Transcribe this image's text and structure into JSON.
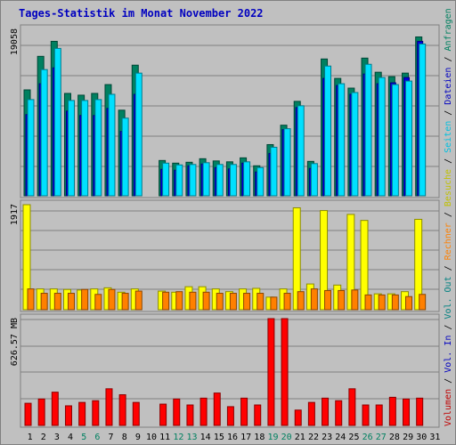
{
  "title": "Tages-Statistik im Monat November 2022",
  "chart_data": {
    "type": "bar",
    "title": "Tages-Statistik im Monat November 2022",
    "days": [
      "1",
      "2",
      "3",
      "4",
      "5",
      "6",
      "7",
      "8",
      "9",
      "10",
      "11",
      "12",
      "13",
      "14",
      "15",
      "16",
      "17",
      "18",
      "19",
      "20",
      "21",
      "22",
      "23",
      "24",
      "25",
      "26",
      "27",
      "28",
      "29",
      "30",
      "31"
    ],
    "weekend_days": [
      "5",
      "6",
      "12",
      "13",
      "19",
      "20",
      "26",
      "27"
    ],
    "panels": [
      {
        "id": "top",
        "ymax_label": "19058",
        "ymax": 19058,
        "series": [
          {
            "name": "Anfragen",
            "color": "#008060",
            "values": [
              12000,
              15800,
              17500,
              11600,
              11400,
              11600,
              12600,
              9700,
              14800,
              0,
              4000,
              3700,
              3800,
              4200,
              3950,
              3850,
              4300,
              3400,
              5800,
              8000,
              10700,
              3900,
              15500,
              13300,
              12200,
              15600,
              14000,
              13500,
              13900,
              18000
            ]
          },
          {
            "name": "Dateien",
            "color": "#0000e0",
            "values": [
              9200,
              12700,
              14500,
              9600,
              9100,
              9100,
              9900,
              7300,
              11500,
              0,
              3000,
              2900,
              3400,
              3600,
              3200,
              3050,
              3700,
              2700,
              4800,
              7500,
              10000,
              3100,
              13300,
              12500,
              11500,
              13800,
              12700,
              12800,
              13400,
              17500
            ]
          },
          {
            "name": "Seiten",
            "color": "#00e0ff",
            "values": [
              10900,
              14300,
              16700,
              10800,
              10800,
              10900,
              11500,
              8800,
              13900,
              0,
              3700,
              3500,
              3550,
              3750,
              3550,
              3550,
              3850,
              3200,
              5500,
              7600,
              10200,
              3650,
              14700,
              12700,
              11700,
              14900,
              13400,
              12600,
              13000,
              17200
            ]
          }
        ]
      },
      {
        "id": "middle",
        "ymax_label": "1917",
        "ymax": 1917,
        "series": [
          {
            "name": "Besuche",
            "color": "#ffff00",
            "values": [
              1917,
              380,
              380,
              370,
              360,
              380,
              400,
              320,
              380,
              0,
              340,
              320,
              420,
              420,
              380,
              330,
              380,
              390,
              230,
              380,
              1860,
              470,
              1810,
              450,
              1740,
              1630,
              290,
              290,
              330,
              1650
            ]
          },
          {
            "name": "Rechner",
            "color": "#ff8000",
            "values": [
              380,
              300,
              300,
              300,
              370,
              280,
              370,
              300,
              340,
              0,
              320,
              330,
              320,
              320,
              300,
              300,
              300,
              300,
              230,
              300,
              330,
              380,
              350,
              350,
              360,
              270,
              270,
              270,
              240,
              280
            ]
          }
        ]
      },
      {
        "id": "bottom",
        "ymax_label": "626.57 MB",
        "ymax": 626.57,
        "series": [
          {
            "name": "Volumen",
            "color": "#ff0000",
            "values": [
              130,
              155,
              195,
              115,
              135,
              145,
              215,
              180,
              135,
              0,
              125,
              155,
              120,
              160,
              190,
              110,
              160,
              120,
              626.57,
              626.57,
              90,
              135,
              160,
              145,
              215,
              120,
              120,
              165,
              155,
              160
            ]
          }
        ]
      }
    ],
    "legend": [
      {
        "text": "Volumen",
        "color": "#c00000"
      },
      {
        "text": "Vol. In",
        "color": "#0000c0"
      },
      {
        "text": "Vol. Out",
        "color": "#008080"
      },
      {
        "text": "Rechner",
        "color": "#ff8000"
      },
      {
        "text": "Besuche",
        "color": "#c0c000"
      },
      {
        "text": "Seiten",
        "color": "#00c0e0"
      },
      {
        "text": "Dateien",
        "color": "#0000c0"
      },
      {
        "text": "Anfragen",
        "color": "#008060"
      }
    ]
  }
}
